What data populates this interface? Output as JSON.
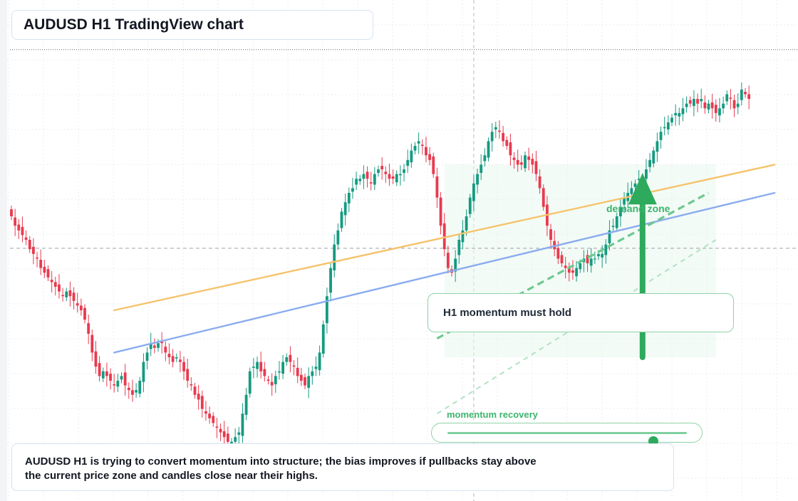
{
  "title": "AUDUSD H1 TradingView chart",
  "callout": "H1 momentum must hold",
  "zone_label": "demand zone",
  "momentum": {
    "label": "momentum recovery",
    "level": 0.86
  },
  "caption": "AUDUSD H1 is trying to convert momentum into structure; the bias improves if pullbacks stay above the current price zone and candles close near their highs.",
  "colors": {
    "up": "#159a80",
    "down": "#e83a4f",
    "orange_line": "#f5c36b",
    "blue_line": "#8aacf0",
    "signal": "#2daa5b",
    "zone_fill": "#e9f7ee"
  },
  "chart_data": {
    "type": "candlestick",
    "title": "AUDUSD H1 TradingView chart",
    "y_scale": [
      0,
      100
    ],
    "closes": [
      60,
      58,
      57,
      56,
      55,
      53,
      52,
      51,
      49,
      48,
      47,
      46,
      45,
      44,
      43,
      44,
      43,
      42,
      41,
      40,
      38,
      35,
      31,
      28,
      26,
      27,
      26,
      25,
      24,
      25,
      26,
      24,
      23,
      22,
      23,
      25,
      29,
      31,
      33,
      32,
      33,
      33,
      31,
      30,
      29,
      30,
      29,
      27,
      25,
      24,
      22,
      21,
      19,
      18,
      17,
      16,
      15,
      14,
      13,
      12,
      12,
      13,
      14,
      18,
      22,
      27,
      28,
      29,
      27,
      26,
      25,
      24,
      26,
      27,
      29,
      30,
      29,
      28,
      26,
      25,
      24,
      26,
      27,
      28,
      31,
      37,
      43,
      49,
      54,
      57,
      61,
      63,
      65,
      66,
      68,
      68,
      69,
      68,
      67,
      69,
      70,
      70,
      69,
      68,
      68,
      69,
      69,
      70,
      72,
      74,
      75,
      76,
      75,
      73,
      72,
      69,
      64,
      58,
      53,
      49,
      48,
      51,
      55,
      57,
      60,
      64,
      67,
      69,
      71,
      73,
      76,
      78,
      79,
      78,
      76,
      75,
      73,
      72,
      71,
      71,
      73,
      72,
      71,
      69,
      66,
      62,
      58,
      55,
      53,
      51,
      50,
      49,
      48,
      48,
      49,
      50,
      51,
      50,
      51,
      51,
      52,
      52,
      54,
      57,
      58,
      60,
      62,
      64,
      65,
      66,
      67,
      68,
      68,
      70,
      72,
      74,
      76,
      78,
      79,
      80,
      81,
      82,
      82,
      83,
      84,
      84,
      85,
      84,
      85,
      83,
      84,
      83,
      82,
      83,
      84,
      86,
      85,
      83,
      84,
      87,
      86,
      85
    ],
    "horizontal_levels": [
      95.5,
      53.2
    ],
    "vertical_marker_index": 126,
    "trendlines": [
      {
        "name": "orange",
        "start": [
          28,
          40
        ],
        "end": [
          208,
          71
        ]
      },
      {
        "name": "blue",
        "start": [
          28,
          31
        ],
        "end": [
          208,
          65
        ]
      }
    ],
    "demand_zone": {
      "x_range": [
        118,
        192
      ],
      "y_range": [
        30,
        71
      ]
    },
    "projection_lines": [
      {
        "style": "dashed",
        "start": [
          116,
          34
        ],
        "end": [
          190,
          65
        ]
      },
      {
        "style": "dashed-light",
        "start": [
          116,
          18
        ],
        "end": [
          192,
          55
        ]
      }
    ],
    "signal_arrow": {
      "x": 172,
      "from": 30,
      "to": 68
    }
  }
}
